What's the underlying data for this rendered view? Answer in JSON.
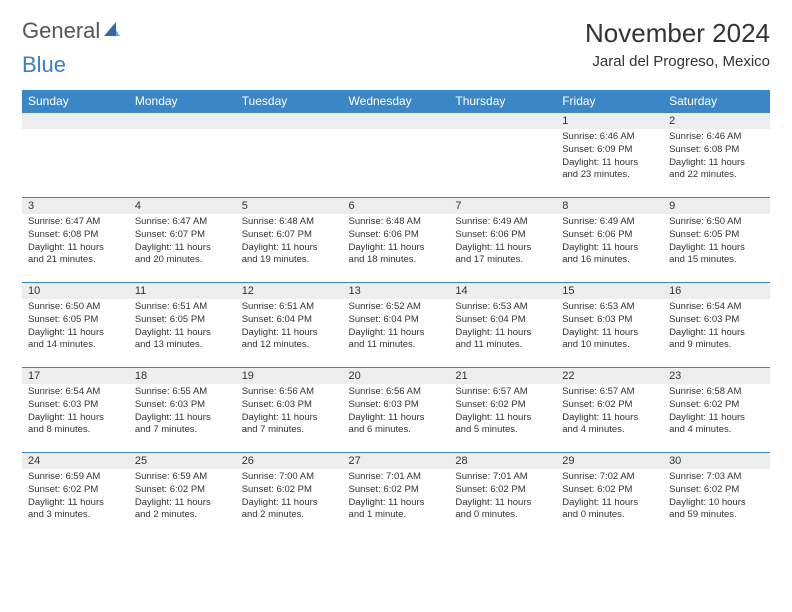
{
  "logo": {
    "part1": "General",
    "part2": "Blue"
  },
  "header": {
    "month_title": "November 2024",
    "location": "Jaral del Progreso, Mexico"
  },
  "colors": {
    "header_bg": "#3b86c6",
    "daynum_bg": "#ededed",
    "border": "#3b86c6",
    "text": "#333333"
  },
  "weekdays": [
    "Sunday",
    "Monday",
    "Tuesday",
    "Wednesday",
    "Thursday",
    "Friday",
    "Saturday"
  ],
  "weeks": [
    {
      "days": [
        null,
        null,
        null,
        null,
        null,
        {
          "n": "1",
          "sr": "Sunrise: 6:46 AM",
          "ss": "Sunset: 6:09 PM",
          "d1": "Daylight: 11 hours",
          "d2": "and 23 minutes."
        },
        {
          "n": "2",
          "sr": "Sunrise: 6:46 AM",
          "ss": "Sunset: 6:08 PM",
          "d1": "Daylight: 11 hours",
          "d2": "and 22 minutes."
        }
      ]
    },
    {
      "days": [
        {
          "n": "3",
          "sr": "Sunrise: 6:47 AM",
          "ss": "Sunset: 6:08 PM",
          "d1": "Daylight: 11 hours",
          "d2": "and 21 minutes."
        },
        {
          "n": "4",
          "sr": "Sunrise: 6:47 AM",
          "ss": "Sunset: 6:07 PM",
          "d1": "Daylight: 11 hours",
          "d2": "and 20 minutes."
        },
        {
          "n": "5",
          "sr": "Sunrise: 6:48 AM",
          "ss": "Sunset: 6:07 PM",
          "d1": "Daylight: 11 hours",
          "d2": "and 19 minutes."
        },
        {
          "n": "6",
          "sr": "Sunrise: 6:48 AM",
          "ss": "Sunset: 6:06 PM",
          "d1": "Daylight: 11 hours",
          "d2": "and 18 minutes."
        },
        {
          "n": "7",
          "sr": "Sunrise: 6:49 AM",
          "ss": "Sunset: 6:06 PM",
          "d1": "Daylight: 11 hours",
          "d2": "and 17 minutes."
        },
        {
          "n": "8",
          "sr": "Sunrise: 6:49 AM",
          "ss": "Sunset: 6:06 PM",
          "d1": "Daylight: 11 hours",
          "d2": "and 16 minutes."
        },
        {
          "n": "9",
          "sr": "Sunrise: 6:50 AM",
          "ss": "Sunset: 6:05 PM",
          "d1": "Daylight: 11 hours",
          "d2": "and 15 minutes."
        }
      ]
    },
    {
      "days": [
        {
          "n": "10",
          "sr": "Sunrise: 6:50 AM",
          "ss": "Sunset: 6:05 PM",
          "d1": "Daylight: 11 hours",
          "d2": "and 14 minutes."
        },
        {
          "n": "11",
          "sr": "Sunrise: 6:51 AM",
          "ss": "Sunset: 6:05 PM",
          "d1": "Daylight: 11 hours",
          "d2": "and 13 minutes."
        },
        {
          "n": "12",
          "sr": "Sunrise: 6:51 AM",
          "ss": "Sunset: 6:04 PM",
          "d1": "Daylight: 11 hours",
          "d2": "and 12 minutes."
        },
        {
          "n": "13",
          "sr": "Sunrise: 6:52 AM",
          "ss": "Sunset: 6:04 PM",
          "d1": "Daylight: 11 hours",
          "d2": "and 11 minutes."
        },
        {
          "n": "14",
          "sr": "Sunrise: 6:53 AM",
          "ss": "Sunset: 6:04 PM",
          "d1": "Daylight: 11 hours",
          "d2": "and 11 minutes."
        },
        {
          "n": "15",
          "sr": "Sunrise: 6:53 AM",
          "ss": "Sunset: 6:03 PM",
          "d1": "Daylight: 11 hours",
          "d2": "and 10 minutes."
        },
        {
          "n": "16",
          "sr": "Sunrise: 6:54 AM",
          "ss": "Sunset: 6:03 PM",
          "d1": "Daylight: 11 hours",
          "d2": "and 9 minutes."
        }
      ]
    },
    {
      "days": [
        {
          "n": "17",
          "sr": "Sunrise: 6:54 AM",
          "ss": "Sunset: 6:03 PM",
          "d1": "Daylight: 11 hours",
          "d2": "and 8 minutes."
        },
        {
          "n": "18",
          "sr": "Sunrise: 6:55 AM",
          "ss": "Sunset: 6:03 PM",
          "d1": "Daylight: 11 hours",
          "d2": "and 7 minutes."
        },
        {
          "n": "19",
          "sr": "Sunrise: 6:56 AM",
          "ss": "Sunset: 6:03 PM",
          "d1": "Daylight: 11 hours",
          "d2": "and 7 minutes."
        },
        {
          "n": "20",
          "sr": "Sunrise: 6:56 AM",
          "ss": "Sunset: 6:03 PM",
          "d1": "Daylight: 11 hours",
          "d2": "and 6 minutes."
        },
        {
          "n": "21",
          "sr": "Sunrise: 6:57 AM",
          "ss": "Sunset: 6:02 PM",
          "d1": "Daylight: 11 hours",
          "d2": "and 5 minutes."
        },
        {
          "n": "22",
          "sr": "Sunrise: 6:57 AM",
          "ss": "Sunset: 6:02 PM",
          "d1": "Daylight: 11 hours",
          "d2": "and 4 minutes."
        },
        {
          "n": "23",
          "sr": "Sunrise: 6:58 AM",
          "ss": "Sunset: 6:02 PM",
          "d1": "Daylight: 11 hours",
          "d2": "and 4 minutes."
        }
      ]
    },
    {
      "days": [
        {
          "n": "24",
          "sr": "Sunrise: 6:59 AM",
          "ss": "Sunset: 6:02 PM",
          "d1": "Daylight: 11 hours",
          "d2": "and 3 minutes."
        },
        {
          "n": "25",
          "sr": "Sunrise: 6:59 AM",
          "ss": "Sunset: 6:02 PM",
          "d1": "Daylight: 11 hours",
          "d2": "and 2 minutes."
        },
        {
          "n": "26",
          "sr": "Sunrise: 7:00 AM",
          "ss": "Sunset: 6:02 PM",
          "d1": "Daylight: 11 hours",
          "d2": "and 2 minutes."
        },
        {
          "n": "27",
          "sr": "Sunrise: 7:01 AM",
          "ss": "Sunset: 6:02 PM",
          "d1": "Daylight: 11 hours",
          "d2": "and 1 minute."
        },
        {
          "n": "28",
          "sr": "Sunrise: 7:01 AM",
          "ss": "Sunset: 6:02 PM",
          "d1": "Daylight: 11 hours",
          "d2": "and 0 minutes."
        },
        {
          "n": "29",
          "sr": "Sunrise: 7:02 AM",
          "ss": "Sunset: 6:02 PM",
          "d1": "Daylight: 11 hours",
          "d2": "and 0 minutes."
        },
        {
          "n": "30",
          "sr": "Sunrise: 7:03 AM",
          "ss": "Sunset: 6:02 PM",
          "d1": "Daylight: 10 hours",
          "d2": "and 59 minutes."
        }
      ]
    }
  ]
}
